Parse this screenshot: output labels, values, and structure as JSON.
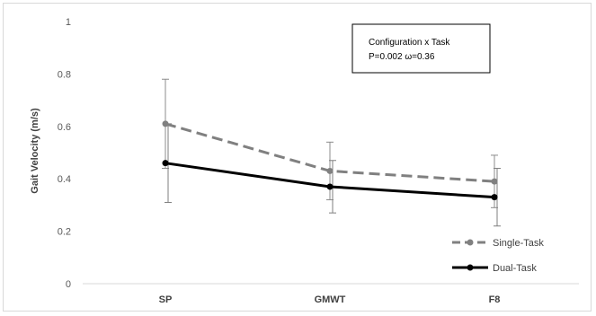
{
  "chart_data": {
    "type": "line",
    "title": "",
    "xlabel": "",
    "ylabel": "Gait Velocity  (m/s)",
    "ylim": [
      0,
      1
    ],
    "yticks": [
      0,
      0.2,
      0.4,
      0.6,
      0.8,
      1
    ],
    "ytick_labels": [
      "0",
      "0.2",
      "0.4",
      "0.6",
      "0.8",
      "1"
    ],
    "categories": [
      "SP",
      "GMWT",
      "F8"
    ],
    "grid": false,
    "legend_position": "bottom-right",
    "series": [
      {
        "name": "Single-Task",
        "values": [
          0.61,
          0.43,
          0.39
        ],
        "error": [
          0.17,
          0.11,
          0.1
        ],
        "color": "#808080",
        "style": "dashed"
      },
      {
        "name": "Dual-Task",
        "values": [
          0.46,
          0.37,
          0.33
        ],
        "error": [
          0.15,
          0.1,
          0.11
        ],
        "color": "#000000",
        "style": "solid"
      }
    ],
    "annotation": {
      "line1": "Configuration x Task",
      "line2": "P=0.002 ω=0.36"
    }
  }
}
